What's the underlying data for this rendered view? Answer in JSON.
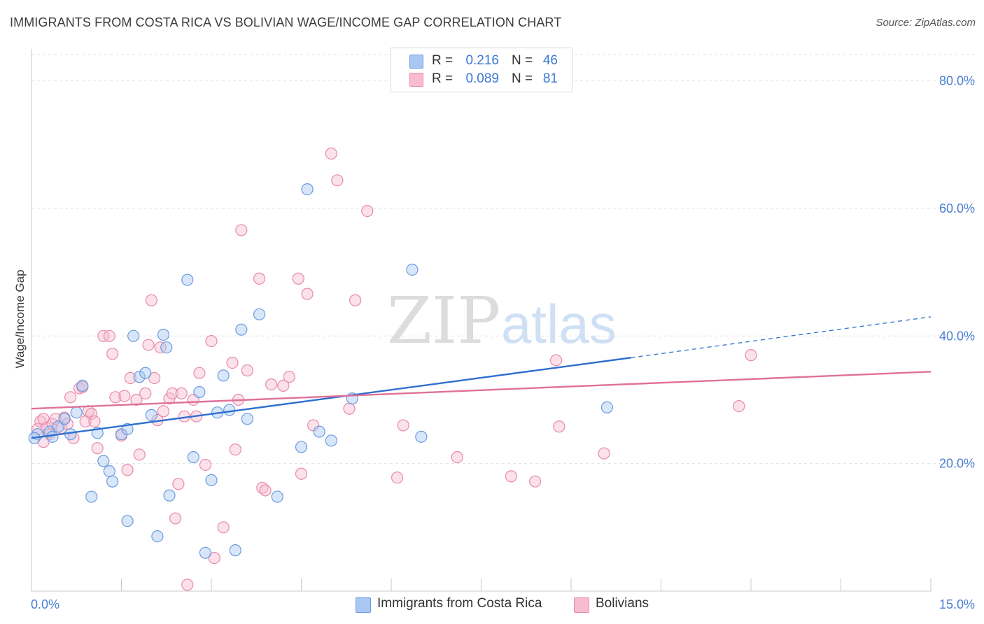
{
  "title": "IMMIGRANTS FROM COSTA RICA VS BOLIVIAN WAGE/INCOME GAP CORRELATION CHART",
  "source": "Source: ZipAtlas.com",
  "watermark": {
    "zip": "ZIP",
    "atlas": "atlas"
  },
  "legend": {
    "r_label": "R =",
    "n_label": "N =",
    "entries": [
      {
        "r": "0.216",
        "n": "46",
        "color": "#a9c7f2",
        "stroke": "#6b9be0"
      },
      {
        "r": "0.089",
        "n": "81",
        "color": "#f7bcd0",
        "stroke": "#e88aab"
      }
    ]
  },
  "chart_data": {
    "type": "scatter",
    "title": "IMMIGRANTS FROM COSTA RICA VS BOLIVIAN WAGE/INCOME GAP CORRELATION CHART",
    "xlabel": "",
    "ylabel": "Wage/Income Gap",
    "xlim": [
      0,
      15
    ],
    "ylim": [
      0,
      85
    ],
    "x_tick_labels": [
      "0.0%",
      "15.0%"
    ],
    "y_ticks": [
      20,
      40,
      60,
      80
    ],
    "y_tick_labels": [
      "20.0%",
      "40.0%",
      "60.0%",
      "80.0%"
    ],
    "grid": true,
    "legend_position": "top-center",
    "series": [
      {
        "name": "Immigrants from Costa Rica",
        "color": "#a9c7f2",
        "stroke": "#6b9be0",
        "line_color": "#2f6fd0",
        "trend": {
          "x0": 0,
          "y0": 24.0,
          "x1": 10.0,
          "y1": 36.6,
          "dash_to_x": 15.0,
          "dash_to_y": 43.0
        },
        "points": [
          [
            0.1,
            24.6
          ],
          [
            0.3,
            25.0
          ],
          [
            0.35,
            24.2
          ],
          [
            0.45,
            25.8
          ],
          [
            0.55,
            27.0
          ],
          [
            0.65,
            24.6
          ],
          [
            0.75,
            28.0
          ],
          [
            0.85,
            32.2
          ],
          [
            1.0,
            14.8
          ],
          [
            1.1,
            24.8
          ],
          [
            1.2,
            20.4
          ],
          [
            1.3,
            18.8
          ],
          [
            1.35,
            17.2
          ],
          [
            1.5,
            24.6
          ],
          [
            1.6,
            11.0
          ],
          [
            1.6,
            25.4
          ],
          [
            1.7,
            40.0
          ],
          [
            1.8,
            33.6
          ],
          [
            1.9,
            34.2
          ],
          [
            2.0,
            27.6
          ],
          [
            2.1,
            8.6
          ],
          [
            2.2,
            40.2
          ],
          [
            2.25,
            38.2
          ],
          [
            2.3,
            15.0
          ],
          [
            2.6,
            48.8
          ],
          [
            2.7,
            21.0
          ],
          [
            2.8,
            31.2
          ],
          [
            2.9,
            6.0
          ],
          [
            3.0,
            17.4
          ],
          [
            3.1,
            28.0
          ],
          [
            3.2,
            33.8
          ],
          [
            3.3,
            28.4
          ],
          [
            3.4,
            6.4
          ],
          [
            3.5,
            41.0
          ],
          [
            3.6,
            27.0
          ],
          [
            3.8,
            43.4
          ],
          [
            4.1,
            14.8
          ],
          [
            4.5,
            22.6
          ],
          [
            4.6,
            63.0
          ],
          [
            4.8,
            25.0
          ],
          [
            5.0,
            23.6
          ],
          [
            5.35,
            30.2
          ],
          [
            6.35,
            50.4
          ],
          [
            6.5,
            24.2
          ],
          [
            9.6,
            28.8
          ],
          [
            0.05,
            24.0
          ]
        ]
      },
      {
        "name": "Bolivians",
        "color": "#f7bcd0",
        "stroke": "#e88aab",
        "line_color": "#e0709a",
        "trend": {
          "x0": 0,
          "y0": 28.6,
          "x1": 15.0,
          "y1": 34.4
        },
        "points": [
          [
            0.1,
            25.4
          ],
          [
            0.15,
            26.6
          ],
          [
            0.2,
            27.0
          ],
          [
            0.25,
            25.6
          ],
          [
            0.3,
            24.6
          ],
          [
            0.35,
            26.2
          ],
          [
            0.4,
            27.0
          ],
          [
            0.5,
            25.6
          ],
          [
            0.55,
            27.2
          ],
          [
            0.6,
            26.2
          ],
          [
            0.65,
            30.4
          ],
          [
            0.7,
            24.0
          ],
          [
            0.8,
            31.8
          ],
          [
            0.85,
            32.0
          ],
          [
            0.9,
            26.6
          ],
          [
            0.95,
            28.2
          ],
          [
            1.0,
            27.8
          ],
          [
            1.05,
            26.6
          ],
          [
            1.1,
            22.4
          ],
          [
            1.2,
            40.0
          ],
          [
            1.3,
            40.0
          ],
          [
            1.35,
            37.2
          ],
          [
            1.4,
            30.4
          ],
          [
            1.5,
            24.4
          ],
          [
            1.55,
            30.6
          ],
          [
            1.6,
            19.0
          ],
          [
            1.65,
            33.4
          ],
          [
            1.75,
            30.0
          ],
          [
            1.8,
            21.4
          ],
          [
            1.9,
            31.0
          ],
          [
            1.95,
            38.6
          ],
          [
            2.0,
            45.6
          ],
          [
            2.05,
            33.4
          ],
          [
            2.1,
            26.8
          ],
          [
            2.15,
            38.2
          ],
          [
            2.2,
            28.2
          ],
          [
            2.3,
            30.2
          ],
          [
            2.35,
            31.0
          ],
          [
            2.4,
            11.4
          ],
          [
            2.45,
            16.8
          ],
          [
            2.5,
            31.0
          ],
          [
            2.55,
            27.4
          ],
          [
            2.6,
            1.0
          ],
          [
            2.7,
            30.0
          ],
          [
            2.75,
            27.4
          ],
          [
            2.8,
            34.2
          ],
          [
            2.9,
            19.8
          ],
          [
            3.0,
            39.2
          ],
          [
            3.05,
            5.2
          ],
          [
            3.2,
            10.0
          ],
          [
            3.35,
            35.8
          ],
          [
            3.4,
            22.2
          ],
          [
            3.45,
            30.0
          ],
          [
            3.5,
            56.6
          ],
          [
            3.6,
            34.6
          ],
          [
            3.8,
            49.0
          ],
          [
            3.85,
            16.2
          ],
          [
            3.9,
            15.8
          ],
          [
            4.0,
            32.4
          ],
          [
            4.2,
            32.2
          ],
          [
            4.3,
            33.6
          ],
          [
            4.45,
            49.0
          ],
          [
            4.5,
            18.4
          ],
          [
            4.6,
            46.6
          ],
          [
            4.7,
            26.0
          ],
          [
            5.0,
            68.6
          ],
          [
            5.1,
            64.4
          ],
          [
            5.3,
            28.6
          ],
          [
            5.4,
            45.6
          ],
          [
            5.6,
            59.6
          ],
          [
            6.1,
            17.8
          ],
          [
            6.2,
            26.0
          ],
          [
            7.1,
            21.0
          ],
          [
            8.0,
            18.0
          ],
          [
            8.4,
            17.2
          ],
          [
            8.75,
            36.2
          ],
          [
            8.8,
            25.8
          ],
          [
            9.55,
            21.6
          ],
          [
            11.8,
            29.0
          ],
          [
            12.0,
            37.0
          ],
          [
            0.2,
            23.4
          ]
        ]
      }
    ]
  }
}
